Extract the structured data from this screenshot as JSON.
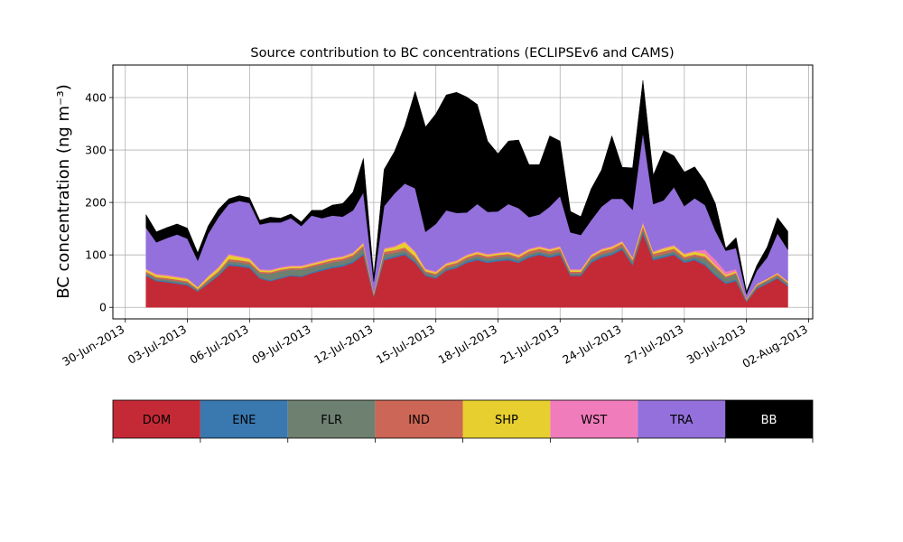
{
  "chart_data": {
    "type": "area",
    "stacked": true,
    "title": "Source contribution to BC concentrations (ECLIPSEv6 and CAMS)",
    "ylabel": "BC concentration (ng m⁻³)",
    "xlabel": "",
    "ylim": [
      -22,
      462
    ],
    "xlim_days": [
      -0.6,
      33.2
    ],
    "grid": true,
    "x_ticks": [
      "30-Jun-2013",
      "03-Jul-2013",
      "06-Jul-2013",
      "09-Jul-2013",
      "12-Jul-2013",
      "15-Jul-2013",
      "18-Jul-2013",
      "21-Jul-2013",
      "24-Jul-2013",
      "27-Jul-2013",
      "30-Jul-2013",
      "02-Aug-2013"
    ],
    "y_ticks": [
      0,
      100,
      200,
      300,
      400
    ],
    "legend": [
      {
        "name": "DOM",
        "color": "#c42a36"
      },
      {
        "name": "ENE",
        "color": "#3a78b0"
      },
      {
        "name": "FLR",
        "color": "#6e8070"
      },
      {
        "name": "IND",
        "color": "#cc6656"
      },
      {
        "name": "SHP",
        "color": "#e6cf2e"
      },
      {
        "name": "WST",
        "color": "#f07cbc"
      },
      {
        "name": "TRA",
        "color": "#9370db"
      },
      {
        "name": "BB",
        "color": "#000000"
      }
    ],
    "x": [
      "2013-07-01",
      "2013-07-01T12",
      "2013-07-02",
      "2013-07-02T12",
      "2013-07-03",
      "2013-07-03T12",
      "2013-07-04",
      "2013-07-04T12",
      "2013-07-05",
      "2013-07-05T12",
      "2013-07-06",
      "2013-07-06T12",
      "2013-07-07",
      "2013-07-07T12",
      "2013-07-08",
      "2013-07-08T12",
      "2013-07-09",
      "2013-07-09T12",
      "2013-07-10",
      "2013-07-10T12",
      "2013-07-11",
      "2013-07-11T12",
      "2013-07-12",
      "2013-07-12T12",
      "2013-07-13",
      "2013-07-13T12",
      "2013-07-14",
      "2013-07-14T12",
      "2013-07-15",
      "2013-07-15T12",
      "2013-07-16",
      "2013-07-16T12",
      "2013-07-17",
      "2013-07-17T12",
      "2013-07-18",
      "2013-07-18T12",
      "2013-07-19",
      "2013-07-19T12",
      "2013-07-20",
      "2013-07-20T12",
      "2013-07-21",
      "2013-07-21T12",
      "2013-07-22",
      "2013-07-22T12",
      "2013-07-23",
      "2013-07-23T12",
      "2013-07-24",
      "2013-07-24T12",
      "2013-07-25",
      "2013-07-25T12",
      "2013-07-26",
      "2013-07-26T12",
      "2013-07-27",
      "2013-07-27T12",
      "2013-07-28",
      "2013-07-28T12",
      "2013-07-29",
      "2013-07-29T12",
      "2013-07-30",
      "2013-07-30T12",
      "2013-07-31",
      "2013-07-31T12",
      "2013-08-01"
    ],
    "series": [
      {
        "name": "DOM",
        "values": [
          60,
          50,
          48,
          45,
          42,
          30,
          45,
          60,
          80,
          78,
          75,
          55,
          50,
          55,
          60,
          58,
          65,
          70,
          75,
          78,
          85,
          100,
          20,
          90,
          95,
          100,
          85,
          60,
          55,
          70,
          75,
          85,
          90,
          85,
          88,
          90,
          85,
          95,
          100,
          95,
          100,
          60,
          60,
          85,
          95,
          100,
          110,
          80,
          140,
          90,
          95,
          100,
          85,
          90,
          80,
          60,
          45,
          50,
          10,
          35,
          45,
          55,
          40
        ]
      },
      {
        "name": "ENE",
        "values": [
          2,
          2,
          2,
          2,
          2,
          1,
          2,
          2,
          3,
          3,
          3,
          2,
          2,
          2,
          2,
          2,
          2,
          3,
          3,
          3,
          3,
          3,
          1,
          3,
          3,
          3,
          3,
          2,
          2,
          2,
          2,
          3,
          3,
          3,
          3,
          3,
          3,
          3,
          3,
          3,
          3,
          2,
          2,
          3,
          3,
          3,
          3,
          3,
          4,
          3,
          3,
          3,
          3,
          3,
          3,
          3,
          3,
          3,
          1,
          2,
          2,
          2,
          2
        ]
      },
      {
        "name": "FLR",
        "values": [
          3,
          3,
          3,
          3,
          3,
          2,
          3,
          4,
          5,
          5,
          5,
          8,
          12,
          12,
          10,
          12,
          10,
          8,
          8,
          8,
          8,
          10,
          3,
          8,
          6,
          6,
          5,
          4,
          4,
          4,
          4,
          4,
          5,
          5,
          5,
          5,
          4,
          4,
          4,
          4,
          4,
          3,
          3,
          4,
          4,
          4,
          4,
          4,
          5,
          4,
          4,
          4,
          4,
          4,
          10,
          12,
          8,
          10,
          3,
          3,
          3,
          3,
          3
        ]
      },
      {
        "name": "IND",
        "values": [
          3,
          3,
          3,
          3,
          3,
          2,
          3,
          3,
          4,
          4,
          4,
          3,
          3,
          3,
          3,
          3,
          3,
          4,
          4,
          4,
          4,
          5,
          2,
          5,
          5,
          5,
          4,
          3,
          3,
          4,
          4,
          4,
          4,
          4,
          4,
          4,
          4,
          5,
          5,
          5,
          5,
          3,
          3,
          4,
          5,
          5,
          5,
          4,
          6,
          5,
          5,
          5,
          4,
          4,
          4,
          3,
          3,
          3,
          1,
          2,
          2,
          3,
          2
        ]
      },
      {
        "name": "SHP",
        "values": [
          4,
          4,
          4,
          4,
          4,
          3,
          5,
          6,
          8,
          6,
          5,
          3,
          3,
          3,
          3,
          3,
          3,
          3,
          3,
          3,
          3,
          4,
          2,
          5,
          6,
          10,
          8,
          3,
          3,
          3,
          3,
          3,
          3,
          3,
          3,
          3,
          3,
          3,
          3,
          3,
          3,
          3,
          3,
          3,
          3,
          3,
          3,
          3,
          5,
          3,
          5,
          5,
          5,
          5,
          5,
          3,
          3,
          3,
          1,
          2,
          2,
          2,
          2
        ]
      },
      {
        "name": "WST",
        "values": [
          2,
          2,
          2,
          2,
          2,
          1,
          2,
          2,
          2,
          2,
          2,
          2,
          2,
          2,
          2,
          2,
          2,
          2,
          2,
          2,
          2,
          2,
          1,
          2,
          2,
          2,
          2,
          2,
          2,
          2,
          2,
          2,
          2,
          2,
          2,
          2,
          2,
          2,
          2,
          2,
          2,
          2,
          2,
          2,
          2,
          2,
          2,
          2,
          3,
          2,
          2,
          2,
          2,
          2,
          8,
          10,
          6,
          4,
          1,
          1,
          1,
          1,
          1
        ]
      },
      {
        "name": "TRA",
        "values": [
          78,
          60,
          70,
          80,
          75,
          50,
          80,
          95,
          95,
          105,
          105,
          85,
          90,
          85,
          90,
          75,
          90,
          80,
          80,
          75,
          80,
          95,
          20,
          80,
          100,
          110,
          120,
          70,
          90,
          100,
          90,
          80,
          90,
          80,
          78,
          90,
          88,
          60,
          60,
          80,
          95,
          70,
          65,
          65,
          80,
          90,
          80,
          90,
          170,
          90,
          90,
          110,
          90,
          100,
          85,
          55,
          40,
          40,
          8,
          25,
          40,
          75,
          60
        ]
      },
      {
        "name": "BB",
        "values": [
          25,
          20,
          20,
          20,
          20,
          15,
          15,
          15,
          10,
          10,
          10,
          8,
          10,
          8,
          8,
          8,
          10,
          15,
          20,
          25,
          35,
          65,
          10,
          70,
          80,
          110,
          185,
          200,
          210,
          220,
          230,
          220,
          190,
          135,
          110,
          120,
          130,
          100,
          95,
          135,
          105,
          40,
          35,
          60,
          70,
          120,
          60,
          80,
          100,
          55,
          95,
          60,
          65,
          60,
          45,
          52,
          5,
          20,
          5,
          10,
          20,
          30,
          35
        ]
      }
    ]
  }
}
